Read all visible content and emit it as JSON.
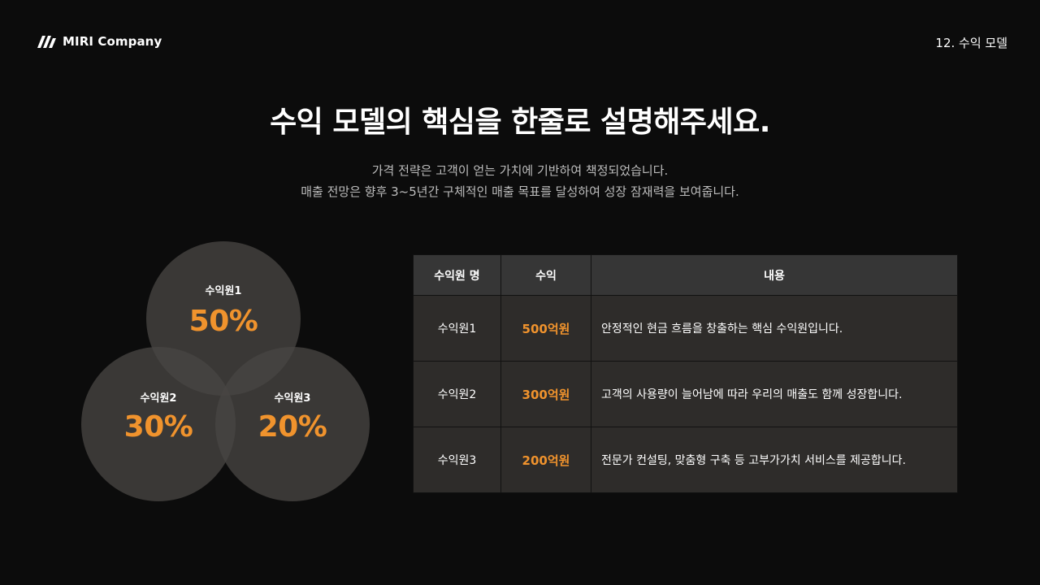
{
  "brand": {
    "name": "MIRI Company"
  },
  "page_label": "12. 수익 모델",
  "title": "수익 모델의 핵심을 한줄로 설명해주세요.",
  "subtitle": {
    "line1": "가격 전략은 고객이 얻는 가치에 기반하여 책정되었습니다.",
    "line2": "매출 전망은 향후 3~5년간 구체적인 매출 목표를 달성하여 성장 잠재력을 보여줍니다."
  },
  "venn": [
    {
      "label": "수익원1",
      "value": "50%"
    },
    {
      "label": "수익원2",
      "value": "30%"
    },
    {
      "label": "수익원3",
      "value": "20%"
    }
  ],
  "table": {
    "headers": [
      "수익원 명",
      "수익",
      "내용"
    ],
    "rows": [
      [
        "수익원1",
        "500억원",
        "안정적인 현금 흐름을 창출하는 핵심 수익원입니다."
      ],
      [
        "수익원2",
        "300억원",
        "고객의 사용량이 늘어남에 따라 우리의 매출도 함께 성장합니다."
      ],
      [
        "수익원3",
        "200억원",
        "전문가 컨설팅, 맞춤형 구축 등 고부가가치 서비스를 제공합니다."
      ]
    ]
  },
  "colors": {
    "accent": "#f0932d",
    "background": "#0c0c0c",
    "circle": "#484542"
  }
}
